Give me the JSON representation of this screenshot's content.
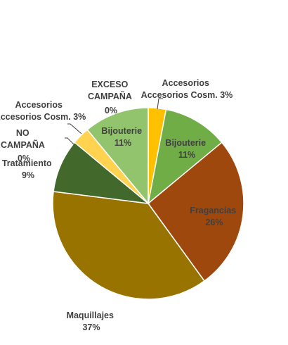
{
  "chart_data": {
    "type": "pie",
    "start_angle_deg": 0,
    "slices": [
      {
        "label": "Accesorios Cosm.",
        "value": 3,
        "text": "3%",
        "color": "#ffc000"
      },
      {
        "label": "Bijouterie",
        "value": 11,
        "text": "11%",
        "color": "#70ad47"
      },
      {
        "label": "Fragancias",
        "value": 26,
        "text": "26%",
        "color": "#9e480e"
      },
      {
        "label": "Maquillajes",
        "value": 37,
        "text": "37%",
        "color": "#997300"
      },
      {
        "label": "Tratamiento",
        "value": 9,
        "text": "9%",
        "color": "#43682b"
      },
      {
        "label": "NO CAMPAÑA",
        "value": 0,
        "text": "0%",
        "color": "#7f7f7f"
      },
      {
        "label": "Accesorios Cosm.",
        "value": 3,
        "text": "3%",
        "color": "#ffd34f"
      },
      {
        "label": "EXCESO CAMPAÑA",
        "value": 0,
        "text": "0%",
        "color": "#a5a5a5"
      },
      {
        "label": "Bijouterie",
        "value": 11,
        "text": "11%",
        "color": "#92c36d"
      }
    ]
  }
}
